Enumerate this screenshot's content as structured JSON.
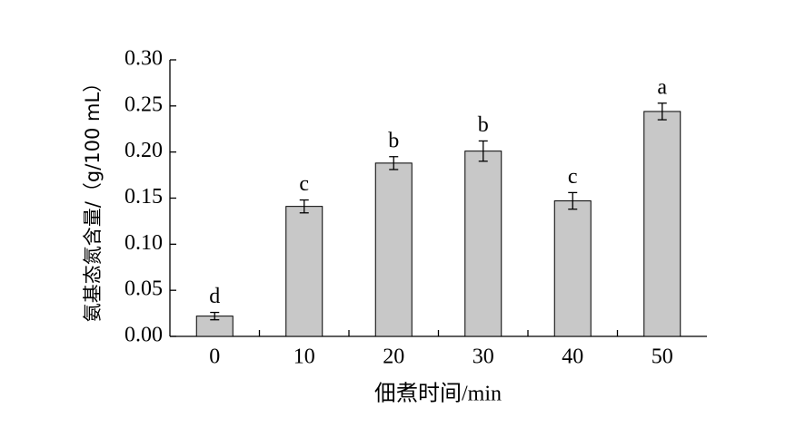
{
  "chart_data": {
    "type": "bar",
    "y_label": "氨基态氮含量/（g/100 mL）",
    "x_label": "佃煮时间/min",
    "categories": [
      "0",
      "10",
      "20",
      "30",
      "40",
      "50"
    ],
    "values": [
      0.022,
      0.141,
      0.188,
      0.201,
      0.147,
      0.244
    ],
    "errors": [
      0.004,
      0.007,
      0.007,
      0.011,
      0.009,
      0.009
    ],
    "labels": [
      "d",
      "c",
      "b",
      "b",
      "c",
      "a"
    ],
    "color": "#c8c8c8",
    "ylim": [
      0,
      0.3
    ],
    "yticks": [
      {
        "value": 0,
        "label": "0.00"
      },
      {
        "value": 0.05,
        "label": "0.05"
      },
      {
        "value": 0.1,
        "label": "0.10"
      },
      {
        "value": 0.15,
        "label": "0.15"
      },
      {
        "value": 0.2,
        "label": "0.20"
      },
      {
        "value": 0.25,
        "label": "0.25"
      },
      {
        "value": 0.3,
        "label": "0.30"
      }
    ],
    "grid": false
  }
}
